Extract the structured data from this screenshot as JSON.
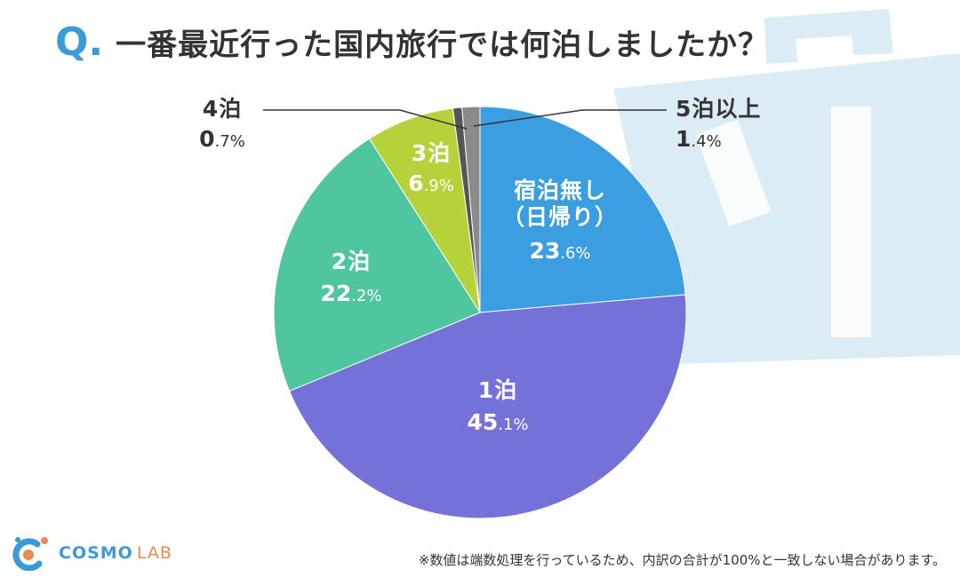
{
  "title": {
    "q_mark": "Q",
    "question": "一番最近行った国内旅行では何泊しましたか？"
  },
  "chart_data": {
    "type": "pie",
    "start_angle_deg": 0,
    "direction": "clockwise",
    "slices": [
      {
        "label": "宿泊無し\n（日帰り）",
        "value": 23.6,
        "int": "23",
        "dec": ".6%",
        "color": "#3b9ee0"
      },
      {
        "label": "1泊",
        "value": 45.1,
        "int": "45",
        "dec": ".1%",
        "color": "#7472d9"
      },
      {
        "label": "2泊",
        "value": 22.2,
        "int": "22",
        "dec": ".2%",
        "color": "#4fc6a0"
      },
      {
        "label": "3泊",
        "value": 6.9,
        "int": "6",
        "dec": ".9%",
        "color": "#b6d23a"
      },
      {
        "label": "4泊",
        "value": 0.7,
        "int": "0",
        "dec": ".7%",
        "color": "#555555"
      },
      {
        "label": "5泊以上",
        "value": 1.4,
        "int": "1",
        "dec": ".4%",
        "color": "#8a8a8a"
      }
    ]
  },
  "logo": {
    "name": "COSMO",
    "sub": "LAB"
  },
  "footnote": "※数値は端数処理を行っているため、内訳の合計が100%と一致しない場合があります。",
  "colors": {
    "accent": "#3d9ad8",
    "logo_sub": "#e88a53"
  }
}
